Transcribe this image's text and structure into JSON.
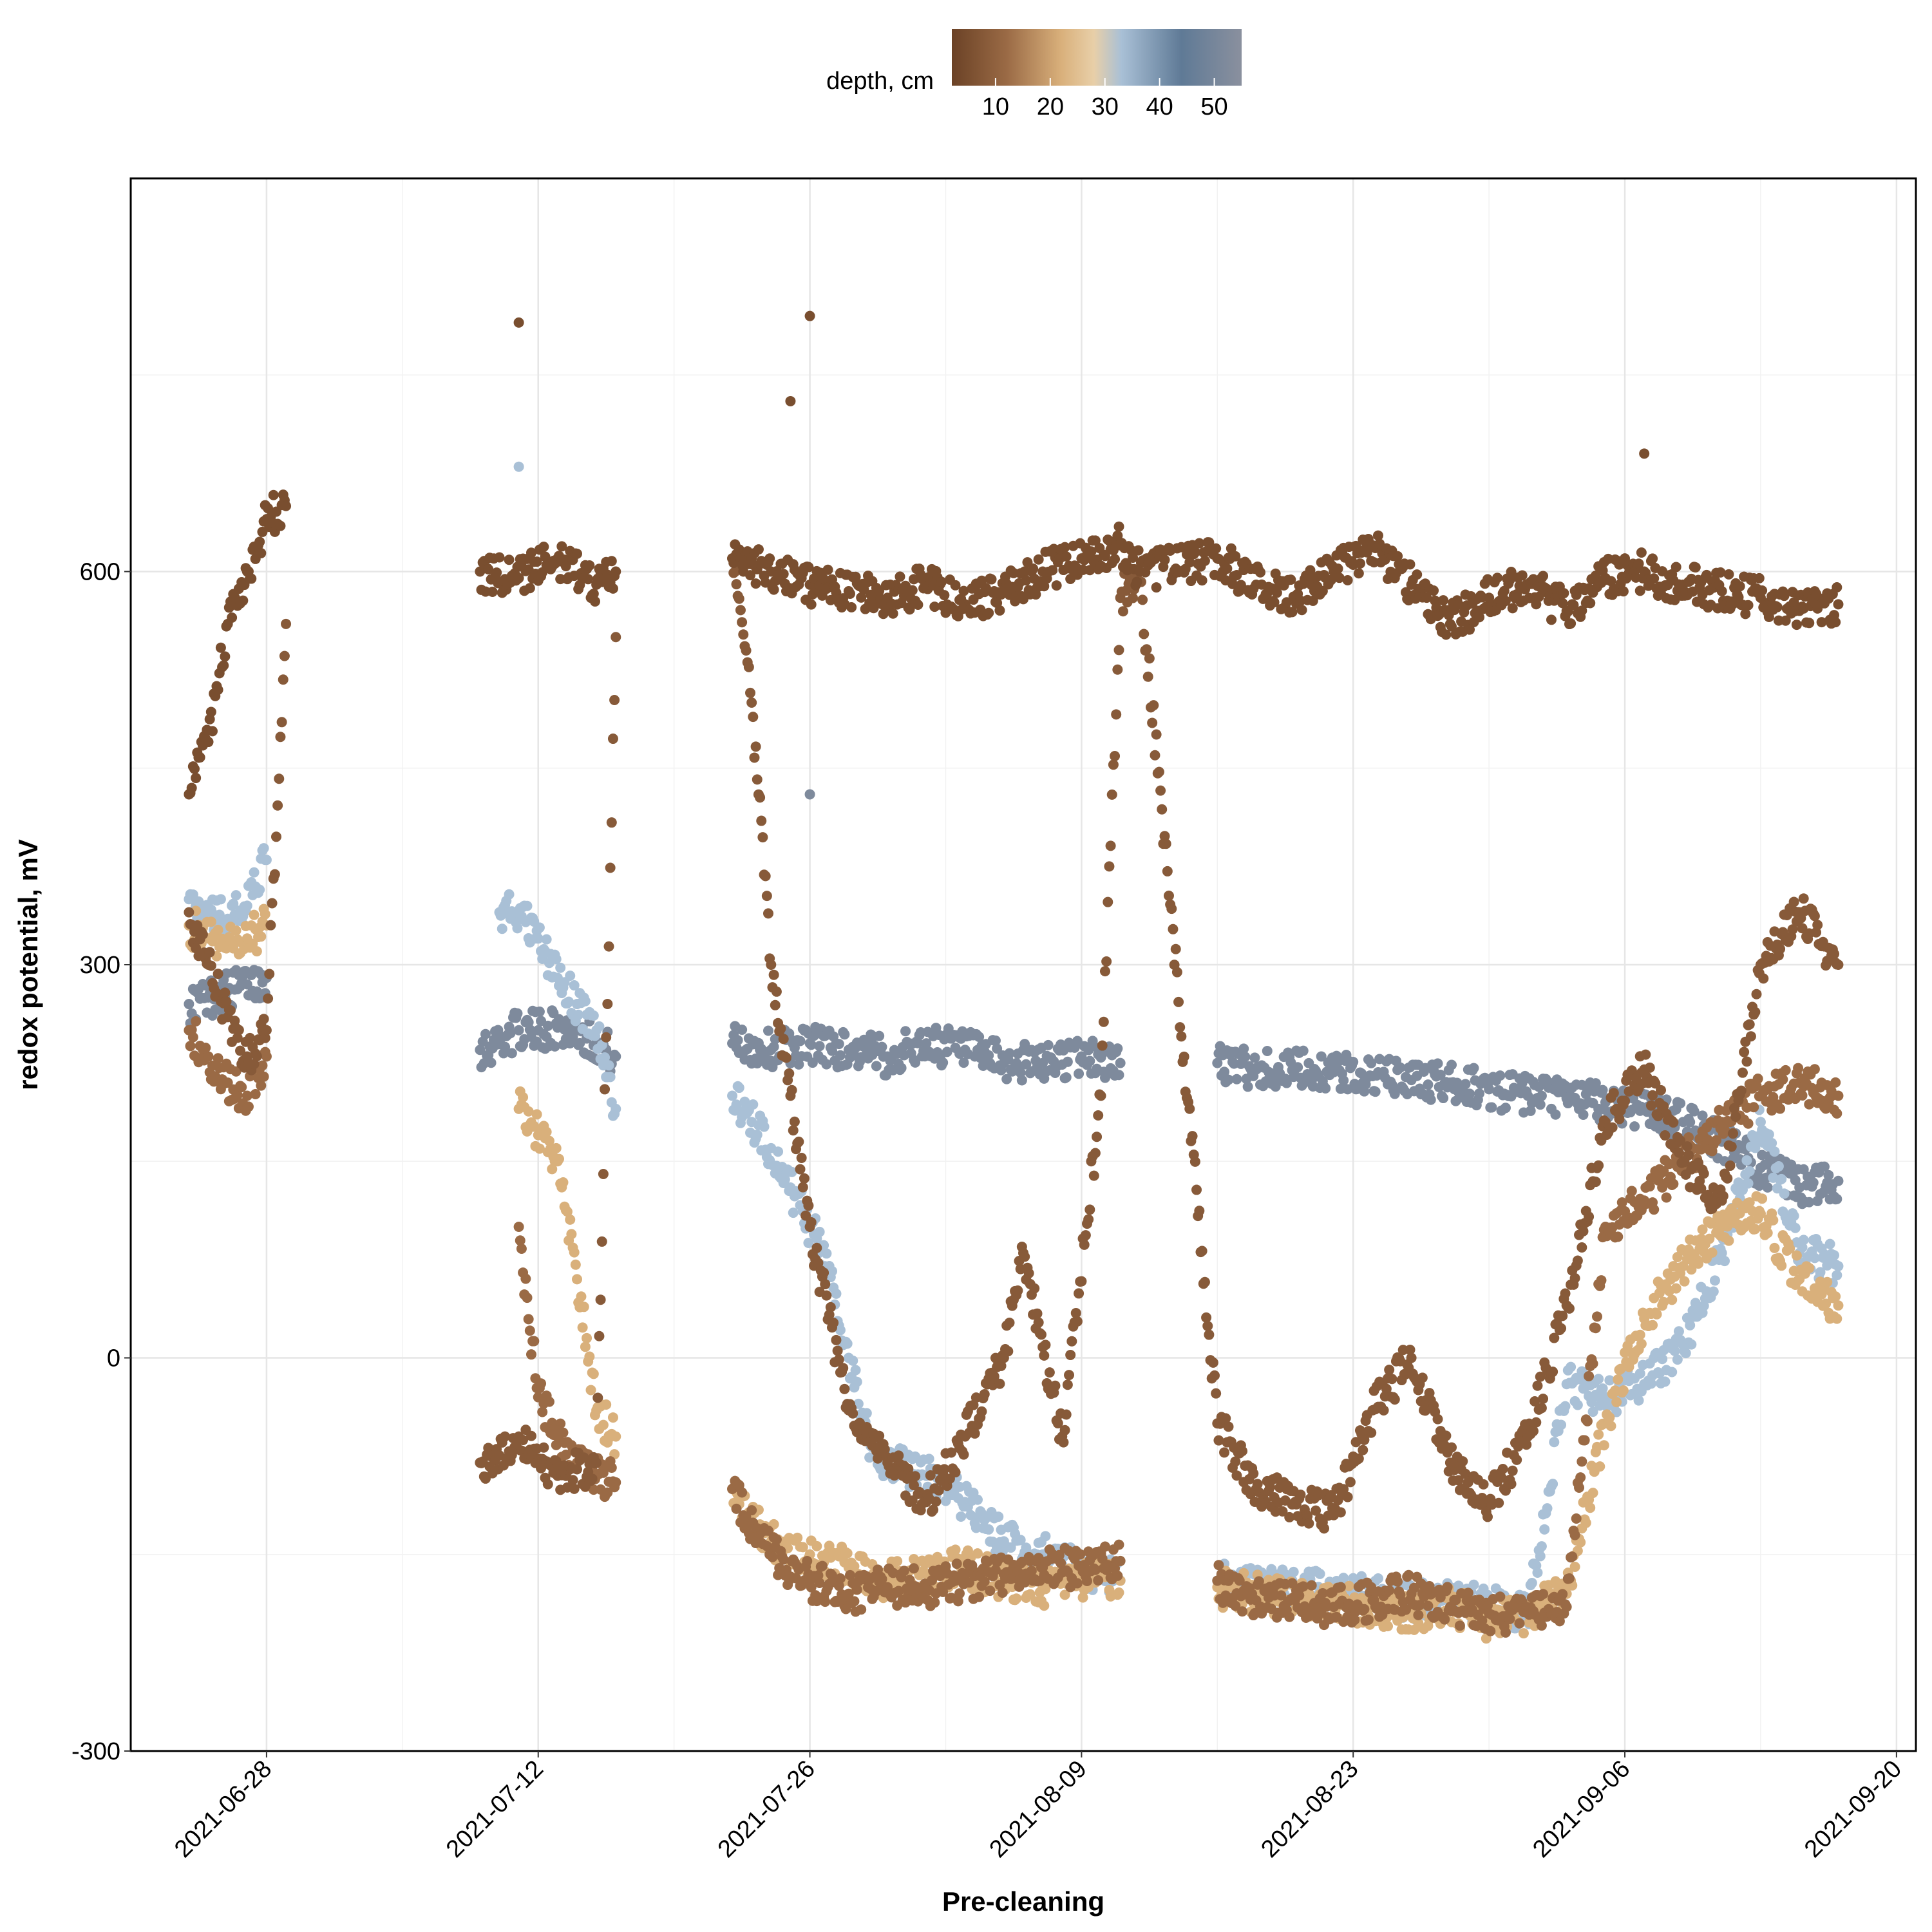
{
  "chart_data": {
    "type": "scatter",
    "title": "",
    "xlabel": "Pre-cleaning",
    "ylabel": "redox potential, mV",
    "x_type": "date",
    "xlim": [
      "2021-06-21",
      "2021-09-21"
    ],
    "ylim": [
      -300,
      900
    ],
    "x_ticks": [
      "2021-06-28",
      "2021-07-12",
      "2021-07-26",
      "2021-08-09",
      "2021-08-23",
      "2021-09-06",
      "2021-09-20"
    ],
    "y_ticks": [
      -300,
      0,
      300,
      600
    ],
    "y_tick_labels": [
      "-300",
      "0",
      "300",
      "600"
    ],
    "grid": true,
    "legend": {
      "title": "depth, cm",
      "position": "top",
      "type": "colorbar",
      "range": [
        2,
        55
      ],
      "ticks": [
        10,
        20,
        30,
        40,
        50
      ],
      "tick_labels": [
        "10",
        "20",
        "30",
        "40",
        "50"
      ],
      "colors": [
        {
          "depth": 2,
          "color": "#6b4226"
        },
        {
          "depth": 12,
          "color": "#9a6a45"
        },
        {
          "depth": 22,
          "color": "#d9b07b"
        },
        {
          "depth": 28,
          "color": "#e8cfa8"
        },
        {
          "depth": 33,
          "color": "#a9c0d6"
        },
        {
          "depth": 44,
          "color": "#5f7a96"
        },
        {
          "depth": 55,
          "color": "#8a909e"
        }
      ]
    },
    "series": [
      {
        "depth": 5,
        "x": [
          "2021-06-24",
          "2021-06-25",
          "2021-06-26",
          "2021-06-27",
          "2021-06-28",
          "2021-06-29",
          "2021-07-09",
          "2021-07-11",
          "2021-07-13",
          "2021-07-15",
          "2021-07-16",
          "2021-07-22",
          "2021-07-24",
          "2021-07-26",
          "2021-07-28",
          "2021-07-30",
          "2021-08-01",
          "2021-08-03",
          "2021-08-05",
          "2021-08-07",
          "2021-08-09",
          "2021-08-11",
          "2021-08-12",
          "2021-08-16",
          "2021-08-18",
          "2021-08-20",
          "2021-08-22",
          "2021-08-24",
          "2021-08-26",
          "2021-08-28",
          "2021-08-30",
          "2021-09-01",
          "2021-09-03",
          "2021-09-05",
          "2021-09-07",
          "2021-09-09",
          "2021-09-11",
          "2021-09-13",
          "2021-09-15",
          "2021-09-17"
        ],
        "y": [
          430,
          470,
          560,
          600,
          640,
          650,
          600,
          595,
          610,
          590,
          600,
          610,
          600,
          590,
          585,
          580,
          590,
          575,
          585,
          600,
          610,
          620,
          600,
          610,
          590,
          580,
          600,
          620,
          590,
          560,
          580,
          590,
          570,
          595,
          600,
          590,
          585,
          580,
          570,
          575
        ]
      },
      {
        "depth": 8,
        "x": [
          "2021-06-24",
          "2021-06-25",
          "2021-06-26",
          "2021-06-27",
          "2021-06-28",
          "2021-06-29",
          "2021-07-09",
          "2021-07-11",
          "2021-07-12",
          "2021-07-13",
          "2021-07-14",
          "2021-07-15",
          "2021-07-16",
          "2021-07-22",
          "2021-07-23",
          "2021-07-24",
          "2021-07-25",
          "2021-07-26",
          "2021-07-28",
          "2021-07-30",
          "2021-08-01",
          "2021-08-03",
          "2021-08-05",
          "2021-08-06",
          "2021-08-08",
          "2021-08-10",
          "2021-08-11",
          "2021-08-12",
          "2021-08-16",
          "2021-08-18",
          "2021-08-20",
          "2021-08-22",
          "2021-08-24",
          "2021-08-26",
          "2021-08-28",
          "2021-08-30",
          "2021-09-01",
          "2021-09-03",
          "2021-09-05",
          "2021-09-07",
          "2021-09-09",
          "2021-09-11",
          "2021-09-13",
          "2021-09-15",
          "2021-09-17"
        ],
        "y": [
          340,
          300,
          260,
          230,
          250,
          560,
          -80,
          -60,
          -80,
          -90,
          -85,
          -80,
          550,
          610,
          500,
          300,
          200,
          100,
          -40,
          -80,
          -110,
          -60,
          0,
          80,
          -60,
          200,
          580,
          600,
          -50,
          -100,
          -110,
          -120,
          -40,
          0,
          -80,
          -110,
          -60,
          40,
          180,
          220,
          150,
          120,
          300,
          340,
          300
        ]
      },
      {
        "depth": 12,
        "x": [
          "2021-06-24",
          "2021-06-25",
          "2021-06-26",
          "2021-06-27",
          "2021-06-28",
          "2021-07-11",
          "2021-07-12",
          "2021-07-13",
          "2021-07-14",
          "2021-07-15",
          "2021-07-16",
          "2021-07-22",
          "2021-07-24",
          "2021-07-26",
          "2021-07-28",
          "2021-07-30",
          "2021-08-01",
          "2021-08-03",
          "2021-08-05",
          "2021-08-07",
          "2021-08-09",
          "2021-08-11",
          "2021-08-16",
          "2021-08-18",
          "2021-08-20",
          "2021-08-22",
          "2021-08-24",
          "2021-08-26",
          "2021-08-28",
          "2021-08-30",
          "2021-09-01",
          "2021-09-03",
          "2021-09-05",
          "2021-09-07",
          "2021-09-09",
          "2021-09-11",
          "2021-09-13",
          "2021-09-15",
          "2021-09-17"
        ],
        "y": [
          250,
          230,
          210,
          200,
          230,
          100,
          -30,
          -60,
          -80,
          -90,
          -95,
          -100,
          -150,
          -170,
          -180,
          -175,
          -175,
          -170,
          -165,
          -160,
          -160,
          -155,
          -170,
          -185,
          -185,
          -190,
          -185,
          -180,
          -190,
          -195,
          -195,
          -190,
          100,
          120,
          150,
          180,
          200,
          210,
          200
        ]
      },
      {
        "depth": 22,
        "x": [
          "2021-06-24",
          "2021-06-25",
          "2021-06-26",
          "2021-06-27",
          "2021-06-28",
          "2021-07-11",
          "2021-07-12",
          "2021-07-13",
          "2021-07-14",
          "2021-07-15",
          "2021-07-16",
          "2021-07-22",
          "2021-07-23",
          "2021-07-24",
          "2021-07-26",
          "2021-07-28",
          "2021-07-30",
          "2021-08-01",
          "2021-08-03",
          "2021-08-05",
          "2021-08-07",
          "2021-08-09",
          "2021-08-11",
          "2021-08-16",
          "2021-08-18",
          "2021-08-20",
          "2021-08-22",
          "2021-08-24",
          "2021-08-26",
          "2021-08-28",
          "2021-08-30",
          "2021-09-01",
          "2021-09-03",
          "2021-09-05",
          "2021-09-07",
          "2021-09-09",
          "2021-09-11",
          "2021-09-13",
          "2021-09-15",
          "2021-09-17"
        ],
        "y": [
          330,
          320,
          315,
          320,
          330,
          190,
          170,
          150,
          60,
          -40,
          -60,
          -100,
          -120,
          -140,
          -150,
          -160,
          -170,
          -165,
          -160,
          -170,
          -175,
          -170,
          -170,
          -175,
          -180,
          -185,
          -185,
          -190,
          -195,
          -190,
          -200,
          -195,
          -180,
          -50,
          30,
          70,
          100,
          110,
          60,
          40
        ]
      },
      {
        "depth": 33,
        "x": [
          "2021-06-24",
          "2021-06-25",
          "2021-06-26",
          "2021-06-27",
          "2021-06-28",
          "2021-07-10",
          "2021-07-11",
          "2021-07-12",
          "2021-07-13",
          "2021-07-14",
          "2021-07-15",
          "2021-07-16",
          "2021-07-22",
          "2021-07-23",
          "2021-07-24",
          "2021-07-25",
          "2021-07-26",
          "2021-07-27",
          "2021-07-28",
          "2021-07-29",
          "2021-07-30",
          "2021-08-01",
          "2021-08-03",
          "2021-08-05",
          "2021-08-07",
          "2021-08-09",
          "2021-08-11",
          "2021-08-16",
          "2021-08-18",
          "2021-08-20",
          "2021-08-22",
          "2021-08-24",
          "2021-08-26",
          "2021-08-28",
          "2021-08-30",
          "2021-09-01",
          "2021-09-03",
          "2021-09-05",
          "2021-09-07",
          "2021-09-09",
          "2021-09-11",
          "2021-09-13",
          "2021-09-15",
          "2021-09-17"
        ],
        "y": [
          350,
          340,
          335,
          345,
          380,
          340,
          340,
          320,
          290,
          270,
          250,
          190,
          200,
          180,
          160,
          130,
          100,
          70,
          0,
          -60,
          -80,
          -90,
          -110,
          -140,
          -150,
          -160,
          -170,
          -170,
          -175,
          -175,
          -180,
          -180,
          -185,
          -185,
          -190,
          -195,
          -20,
          -30,
          -20,
          10,
          80,
          180,
          80,
          70
        ]
      },
      {
        "depth": 52,
        "x": [
          "2021-06-24",
          "2021-06-25",
          "2021-06-26",
          "2021-06-27",
          "2021-06-28",
          "2021-07-09",
          "2021-07-11",
          "2021-07-12",
          "2021-07-13",
          "2021-07-14",
          "2021-07-15",
          "2021-07-16",
          "2021-07-22",
          "2021-07-24",
          "2021-07-26",
          "2021-07-28",
          "2021-07-30",
          "2021-08-01",
          "2021-08-03",
          "2021-08-05",
          "2021-08-07",
          "2021-08-09",
          "2021-08-11",
          "2021-08-16",
          "2021-08-18",
          "2021-08-20",
          "2021-08-22",
          "2021-08-24",
          "2021-08-26",
          "2021-08-28",
          "2021-08-30",
          "2021-09-01",
          "2021-09-03",
          "2021-09-05",
          "2021-09-07",
          "2021-09-09",
          "2021-09-11",
          "2021-09-13",
          "2021-09-15",
          "2021-09-17"
        ],
        "y": [
          270,
          275,
          280,
          285,
          290,
          235,
          250,
          250,
          252,
          250,
          240,
          230,
          240,
          235,
          240,
          235,
          230,
          240,
          235,
          225,
          225,
          230,
          225,
          225,
          220,
          220,
          218,
          215,
          212,
          210,
          205,
          200,
          198,
          195,
          190,
          180,
          165,
          145,
          130,
          135
        ]
      }
    ],
    "annotations": [
      {
        "x": "2021-07-11",
        "y": 790,
        "depth": 5
      },
      {
        "x": "2021-07-25",
        "y": 730,
        "depth": 5
      },
      {
        "x": "2021-07-26",
        "y": 795,
        "depth": 5
      },
      {
        "x": "2021-09-07",
        "y": 690,
        "depth": 5
      },
      {
        "x": "2021-07-11",
        "y": 680,
        "depth": 33
      },
      {
        "x": "2021-07-26",
        "y": 430,
        "depth": 52
      }
    ]
  }
}
